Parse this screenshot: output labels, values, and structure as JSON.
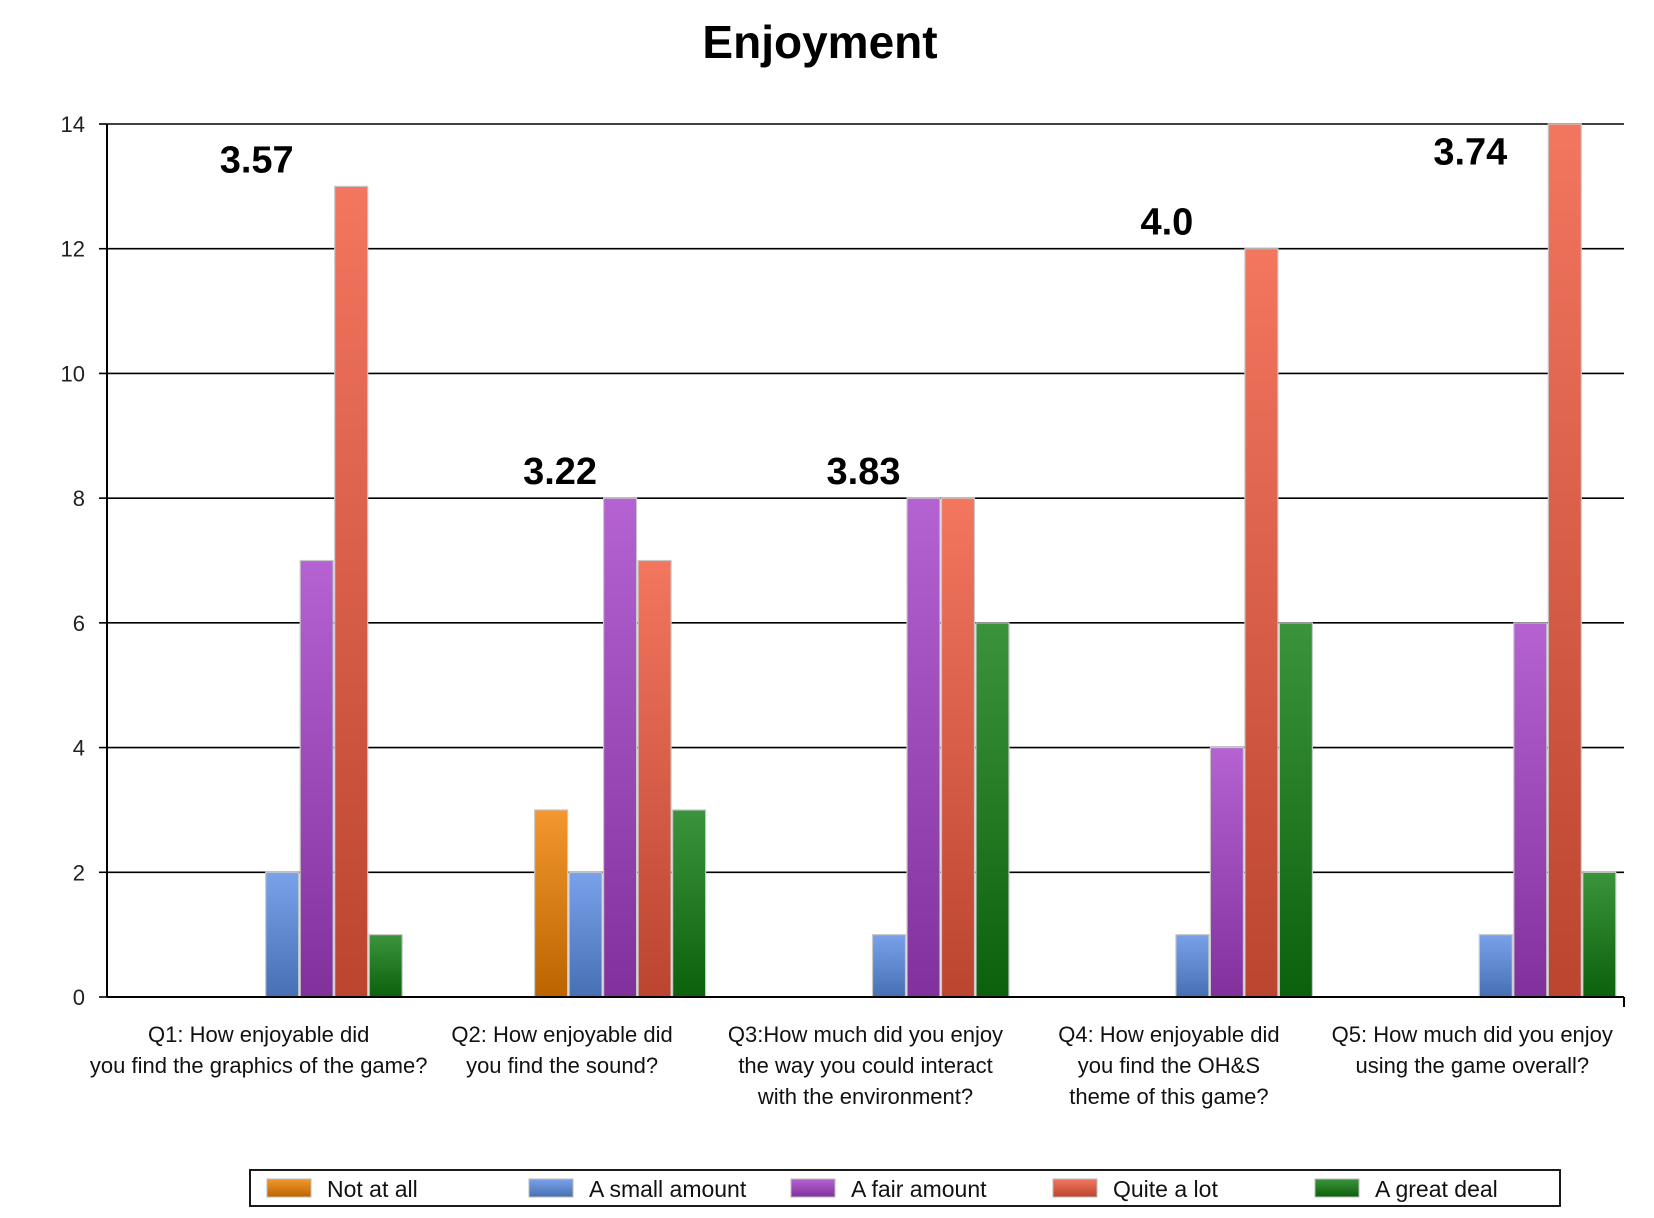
{
  "chart_data": {
    "type": "bar",
    "title": "Enjoyment",
    "ylim": [
      0,
      14
    ],
    "yticks": [
      0,
      2,
      4,
      6,
      8,
      10,
      12,
      14
    ],
    "grid": true,
    "legend_position": "bottom",
    "categories": [
      [
        "Q1: How enjoyable did",
        "you find the graphics of the game?"
      ],
      [
        "Q2: How enjoyable did",
        "you find the sound?"
      ],
      [
        "Q3:How much did you enjoy",
        "the way you could interact",
        "with the environment?"
      ],
      [
        "Q4: How enjoyable did",
        "you find the OH&S",
        "theme of this game?"
      ],
      [
        "Q5: How much did you enjoy",
        "using the game overall?"
      ]
    ],
    "annotations": [
      "3.57",
      "3.22",
      "3.83",
      "4.0",
      "3.74"
    ],
    "series": [
      {
        "name": "Not at all",
        "color": "#f08000",
        "values": [
          0,
          3,
          0,
          0,
          0
        ]
      },
      {
        "name": "A small amount",
        "color": "#5b8ee6",
        "values": [
          2,
          2,
          1,
          1,
          1
        ]
      },
      {
        "name": "A fair amount",
        "color": "#a53fc8",
        "values": [
          7,
          8,
          8,
          4,
          6
        ]
      },
      {
        "name": "Quite a lot",
        "color": "#f0583c",
        "values": [
          13,
          7,
          8,
          12,
          14
        ]
      },
      {
        "name": "A great deal",
        "color": "#107c10",
        "values": [
          1,
          3,
          6,
          6,
          2
        ]
      }
    ]
  }
}
